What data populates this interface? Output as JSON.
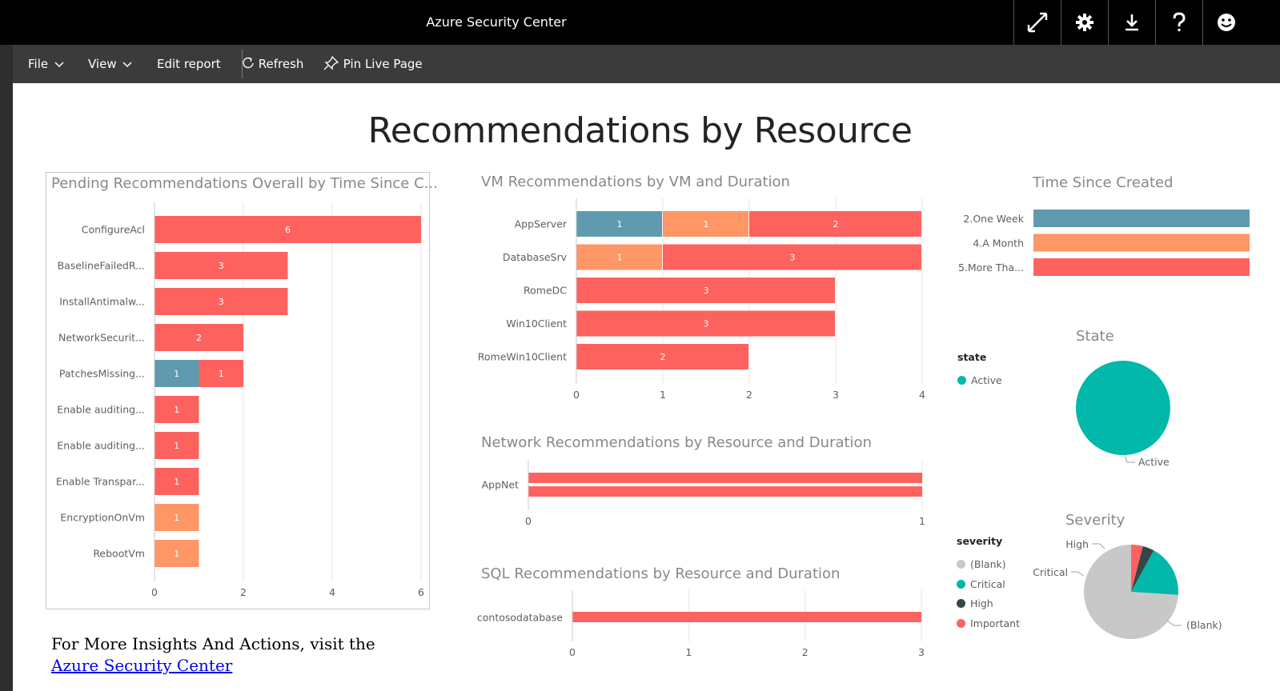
{
  "app": {
    "title": "Azure Security Center"
  },
  "title_icons": [
    "fullscreen-icon",
    "gear-icon",
    "download-icon",
    "help-icon",
    "smiley-icon"
  ],
  "toolbar": {
    "file": "File",
    "view": "View",
    "edit_report": "Edit report",
    "refresh": "Refresh",
    "pin_live_page": "Pin Live Page"
  },
  "report": {
    "title": "Recommendations by Resource"
  },
  "colors": {
    "one_week": "#5f9aae",
    "a_month": "#fe9666",
    "more_than": "#fd625e",
    "active": "#01b8aa",
    "blank": "#c8c8c8",
    "critical": "#01b8aa",
    "high": "#374649",
    "important": "#fd625e"
  },
  "charts": {
    "pending": {
      "title": "Pending Recommendations Overall by Time Since C..."
    },
    "vm": {
      "title": "VM Recommendations by VM and Duration"
    },
    "network": {
      "title": "Network Recommendations by Resource and Duration"
    },
    "sql": {
      "title": "SQL Recommendations by Resource and Duration"
    },
    "time_since": {
      "title": "Time Since Created"
    },
    "state": {
      "title": "State",
      "legend_title": "state",
      "legend": [
        "Active"
      ],
      "slice_labels": [
        "Active"
      ]
    },
    "severity": {
      "title": "Severity",
      "legend_title": "severity",
      "legend": [
        "(Blank)",
        "Critical",
        "High",
        "Important"
      ],
      "slice_labels": [
        "High",
        "Critical",
        "(Blank)"
      ]
    }
  },
  "chart_data": [
    {
      "id": "pending",
      "type": "bar",
      "orientation": "horizontal",
      "stacked": true,
      "title": "Pending Recommendations Overall by Time Since C...",
      "categories": [
        "ConfigureAcl",
        "BaselineFailedR...",
        "InstallAntimalw...",
        "NetworkSecurit...",
        "PatchesMissing...",
        "Enable auditing...",
        "Enable auditing...",
        "Enable Transpar...",
        "EncryptionOnVm",
        "RebootVm"
      ],
      "series": [
        {
          "color": "#5f9aae",
          "values": [
            0,
            0,
            0,
            0,
            1,
            0,
            0,
            0,
            0,
            0
          ]
        },
        {
          "color": "#fe9666",
          "values": [
            0,
            0,
            0,
            0,
            0,
            0,
            0,
            0,
            1,
            1
          ]
        },
        {
          "color": "#fd625e",
          "values": [
            6,
            3,
            3,
            2,
            1,
            1,
            1,
            1,
            0,
            0
          ]
        }
      ],
      "xlim": [
        0,
        6
      ],
      "xticks": [
        0,
        2,
        4,
        6
      ]
    },
    {
      "id": "vm",
      "type": "bar",
      "orientation": "horizontal",
      "stacked": true,
      "title": "VM Recommendations by VM and Duration",
      "categories": [
        "AppServer",
        "DatabaseSrv",
        "RomeDC",
        "Win10Client",
        "RomeWin10Client"
      ],
      "series": [
        {
          "color": "#5f9aae",
          "values": [
            1,
            0,
            0,
            0,
            0
          ]
        },
        {
          "color": "#fe9666",
          "values": [
            1,
            1,
            0,
            0,
            0
          ]
        },
        {
          "color": "#fd625e",
          "values": [
            2,
            3,
            3,
            3,
            2
          ]
        }
      ],
      "xlim": [
        0,
        4
      ],
      "xticks": [
        0,
        1,
        2,
        3,
        4
      ]
    },
    {
      "id": "network",
      "type": "bar",
      "orientation": "horizontal",
      "title": "Network Recommendations by Resource and Duration",
      "categories": [
        "AppNet"
      ],
      "series": [
        {
          "color": "#fd625e",
          "values": [
            1
          ]
        },
        {
          "color": "#fd625e",
          "values": [
            1
          ]
        }
      ],
      "xlim": [
        0,
        1
      ],
      "xticks": [
        0,
        1
      ]
    },
    {
      "id": "sql",
      "type": "bar",
      "orientation": "horizontal",
      "title": "SQL Recommendations by Resource and Duration",
      "categories": [
        "contosodatabase"
      ],
      "series": [
        {
          "color": "#fd625e",
          "values": [
            3
          ]
        }
      ],
      "xlim": [
        0,
        3
      ],
      "xticks": [
        0,
        1,
        2,
        3
      ]
    },
    {
      "id": "time_since",
      "type": "bar",
      "orientation": "horizontal",
      "title": "Time Since Created",
      "categories": [
        "2.One Week",
        "4.A Month",
        "5.More Tha..."
      ],
      "colors": [
        "#5f9aae",
        "#fe9666",
        "#fd625e"
      ],
      "values": [
        1,
        1,
        1
      ]
    },
    {
      "id": "state",
      "type": "pie",
      "title": "State",
      "labels": [
        "Active"
      ],
      "values": [
        100
      ],
      "colors": [
        "#01b8aa"
      ]
    },
    {
      "id": "severity",
      "type": "pie",
      "title": "Severity",
      "labels": [
        "(Blank)",
        "Critical",
        "High",
        "Important"
      ],
      "values": [
        74,
        18,
        4,
        4
      ],
      "colors": [
        "#c8c8c8",
        "#01b8aa",
        "#374649",
        "#fd625e"
      ]
    }
  ],
  "footer": {
    "prefix": "For More Insights And Actions, visit the ",
    "link_text": "Azure Security Center"
  }
}
